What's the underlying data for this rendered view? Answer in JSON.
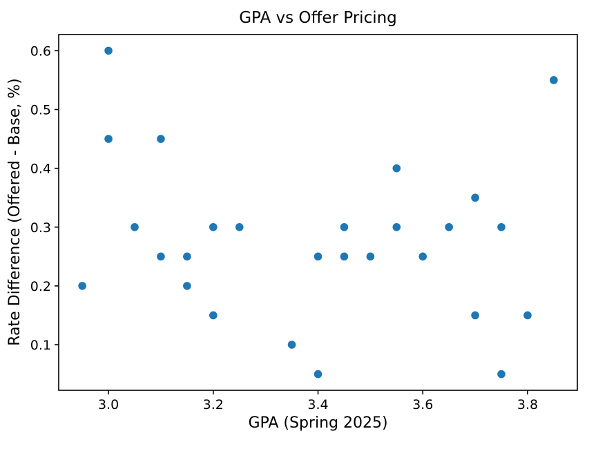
{
  "chart_data": {
    "type": "scatter",
    "title": "GPA vs Offer Pricing",
    "xlabel": "GPA (Spring 2025)",
    "ylabel": "Rate Difference (Offered - Base, %)",
    "xlim": [
      2.905,
      3.895
    ],
    "ylim": [
      0.0225,
      0.6275
    ],
    "xticks": [
      3.0,
      3.2,
      3.4,
      3.6,
      3.8
    ],
    "yticks": [
      0.1,
      0.2,
      0.3,
      0.4,
      0.5,
      0.6
    ],
    "grid": false,
    "legend": false,
    "marker": {
      "color": "#1f77b4",
      "radius_px": 5.8
    },
    "colors": {
      "spine": "#000000",
      "text": "#000000",
      "background": "#ffffff"
    },
    "points": [
      [
        2.95,
        0.2
      ],
      [
        3.0,
        0.6
      ],
      [
        3.0,
        0.45
      ],
      [
        3.05,
        0.3
      ],
      [
        3.1,
        0.45
      ],
      [
        3.1,
        0.25
      ],
      [
        3.15,
        0.25
      ],
      [
        3.15,
        0.2
      ],
      [
        3.2,
        0.3
      ],
      [
        3.2,
        0.15
      ],
      [
        3.25,
        0.3
      ],
      [
        3.35,
        0.1
      ],
      [
        3.4,
        0.25
      ],
      [
        3.4,
        0.05
      ],
      [
        3.45,
        0.3
      ],
      [
        3.45,
        0.25
      ],
      [
        3.5,
        0.25
      ],
      [
        3.55,
        0.4
      ],
      [
        3.55,
        0.3
      ],
      [
        3.6,
        0.25
      ],
      [
        3.65,
        0.3
      ],
      [
        3.7,
        0.35
      ],
      [
        3.7,
        0.15
      ],
      [
        3.75,
        0.3
      ],
      [
        3.75,
        0.05
      ],
      [
        3.8,
        0.15
      ],
      [
        3.85,
        0.55
      ]
    ]
  }
}
